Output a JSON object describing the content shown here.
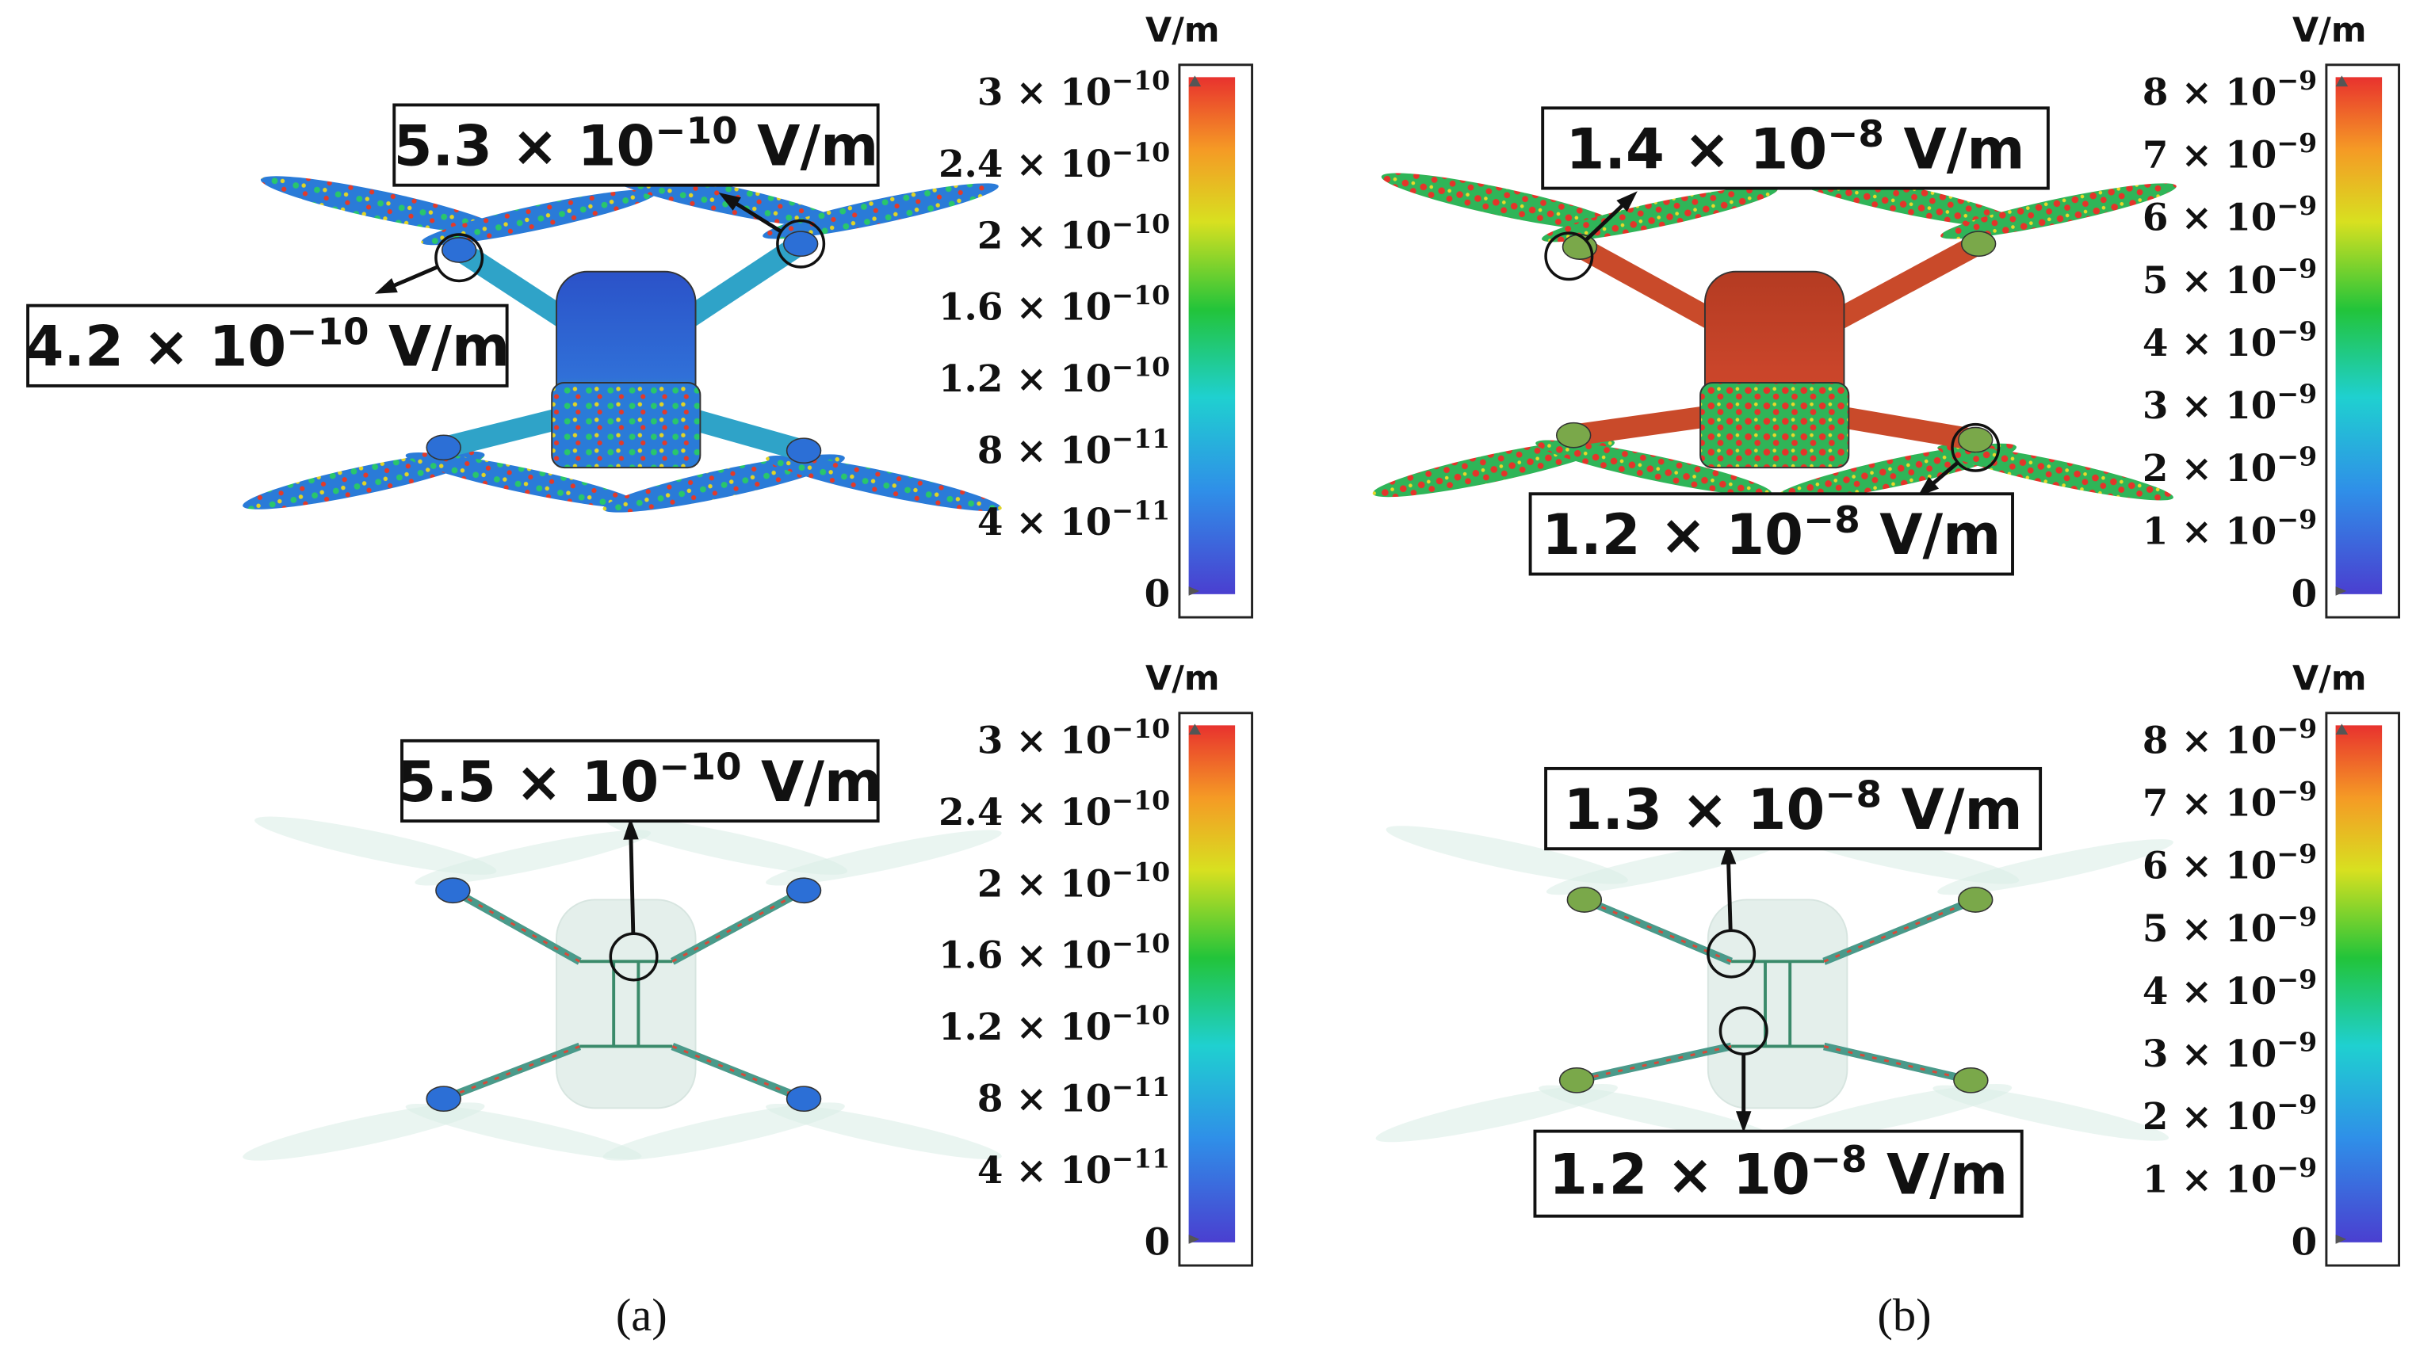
{
  "panels": [
    {
      "unit": "V/m",
      "ticks": [
        {
          "base": "3 × 10",
          "exponent": "−10"
        },
        {
          "base": "2.4 × 10",
          "exponent": "−10"
        },
        {
          "base": "2 × 10",
          "exponent": "−10"
        },
        {
          "base": "1.6 × 10",
          "exponent": "−10"
        },
        {
          "base": "1.2 × 10",
          "exponent": "−10"
        },
        {
          "base": "8 × 10",
          "exponent": "−11"
        },
        {
          "base": "4 × 10",
          "exponent": "−11"
        },
        {
          "base": "0"
        }
      ],
      "callouts": [
        {
          "value": "5.3 × 10",
          "exponent": "−10",
          "unit": "V/m"
        },
        {
          "value": "4.2 × 10",
          "exponent": "−10",
          "unit": "V/m"
        }
      ]
    },
    {
      "unit": "V/m",
      "ticks": [
        {
          "base": "8 × 10",
          "exponent": "−9"
        },
        {
          "base": "7 × 10",
          "exponent": "−9"
        },
        {
          "base": "6 × 10",
          "exponent": "−9"
        },
        {
          "base": "5 × 10",
          "exponent": "−9"
        },
        {
          "base": "4 × 10",
          "exponent": "−9"
        },
        {
          "base": "3 × 10",
          "exponent": "−9"
        },
        {
          "base": "2 × 10",
          "exponent": "−9"
        },
        {
          "base": "1 × 10",
          "exponent": "−9"
        },
        {
          "base": "0"
        }
      ],
      "callouts": [
        {
          "value": "1.4 × 10",
          "exponent": "−8",
          "unit": "V/m"
        },
        {
          "value": "1.2 × 10",
          "exponent": "−8",
          "unit": "V/m"
        }
      ]
    },
    {
      "unit": "V/m",
      "ticks": [
        {
          "base": "3 × 10",
          "exponent": "−10"
        },
        {
          "base": "2.4 × 10",
          "exponent": "−10"
        },
        {
          "base": "2 × 10",
          "exponent": "−10"
        },
        {
          "base": "1.6 × 10",
          "exponent": "−10"
        },
        {
          "base": "1.2 × 10",
          "exponent": "−10"
        },
        {
          "base": "8 × 10",
          "exponent": "−11"
        },
        {
          "base": "4 × 10",
          "exponent": "−11"
        },
        {
          "base": "0"
        }
      ],
      "callouts": [
        {
          "value": "5.5 × 10",
          "exponent": "−10",
          "unit": "V/m"
        }
      ]
    },
    {
      "unit": "V/m",
      "ticks": [
        {
          "base": "8 × 10",
          "exponent": "−9"
        },
        {
          "base": "7 × 10",
          "exponent": "−9"
        },
        {
          "base": "6 × 10",
          "exponent": "−9"
        },
        {
          "base": "5 × 10",
          "exponent": "−9"
        },
        {
          "base": "4 × 10",
          "exponent": "−9"
        },
        {
          "base": "3 × 10",
          "exponent": "−9"
        },
        {
          "base": "2 × 10",
          "exponent": "−9"
        },
        {
          "base": "1 × 10",
          "exponent": "−9"
        },
        {
          "base": "0"
        }
      ],
      "callouts": [
        {
          "value": "1.3 × 10",
          "exponent": "−8",
          "unit": "V/m"
        },
        {
          "value": "1.2 × 10",
          "exponent": "−8",
          "unit": "V/m"
        }
      ]
    }
  ],
  "captions": [
    "(a)",
    "(b)"
  ]
}
